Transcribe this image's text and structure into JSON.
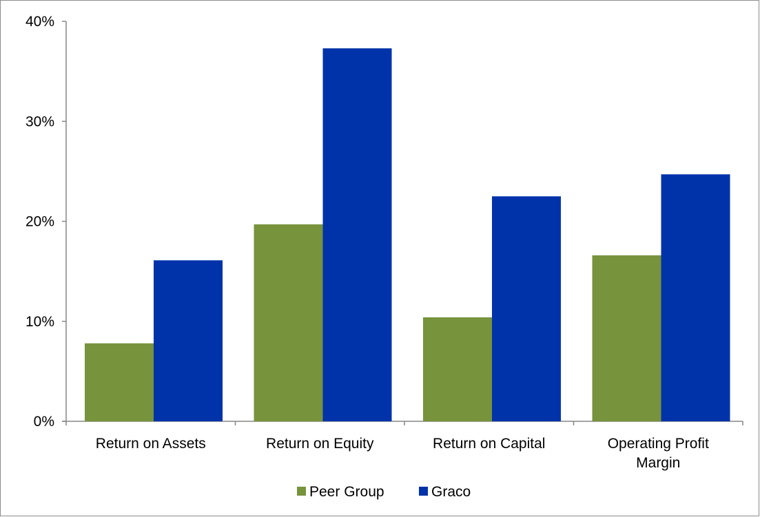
{
  "chart_data": {
    "type": "bar",
    "categories": [
      [
        "Return on Assets"
      ],
      [
        "Return on Equity"
      ],
      [
        "Return on Capital"
      ],
      [
        "Operating Profit",
        "Margin"
      ]
    ],
    "series": [
      {
        "name": "Peer Group",
        "values": [
          7.8,
          19.7,
          10.4,
          16.6
        ],
        "color": "#77933c"
      },
      {
        "name": "Graco",
        "values": [
          16.1,
          37.3,
          22.5,
          24.7
        ],
        "color": "#0033aa"
      }
    ],
    "yticks": [
      "0%",
      "10%",
      "20%",
      "30%",
      "40%"
    ],
    "ylim": [
      0,
      40
    ],
    "ytick_step": 10,
    "grid": false,
    "legend_position": "bottom",
    "axis_color": "#868686"
  }
}
